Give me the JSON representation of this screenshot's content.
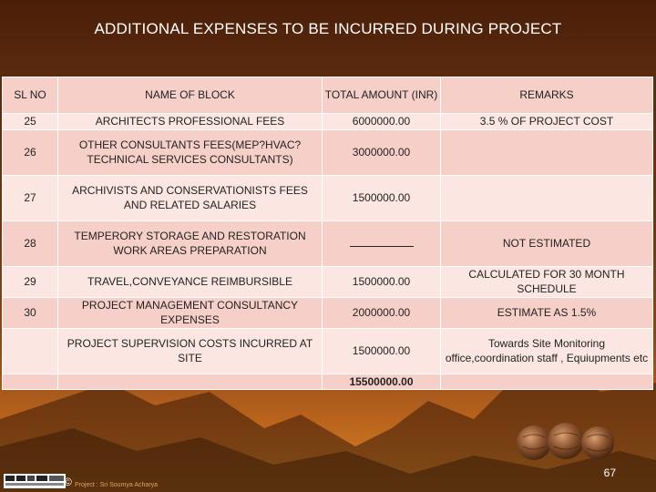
{
  "title": "ADDITIONAL EXPENSES  TO BE  INCURRED DURING PROJECT",
  "table": {
    "headers": {
      "sl": "SL NO",
      "block": "NAME OF BLOCK",
      "amount": "TOTAL AMOUNT (INR)",
      "remarks": "REMARKS"
    },
    "rows": [
      {
        "sl": "25",
        "block": "ARCHITECTS PROFESSIONAL FEES",
        "amount": "6000000.00",
        "remarks": "3.5 % OF PROJECT COST"
      },
      {
        "sl": "26",
        "block": "OTHER CONSULTANTS FEES(MEP?HVAC?TECHNICAL SERVICES CONSULTANTS)",
        "amount": "3000000.00",
        "remarks": ""
      },
      {
        "sl": "27",
        "block": "ARCHIVISTS AND CONSERVATIONISTS FEES AND RELATED SALARIES",
        "amount": "1500000.00",
        "remarks": ""
      },
      {
        "sl": "28",
        "block": "TEMPERORY STORAGE AND RESTORATION WORK AREAS PREPARATION",
        "amount": "",
        "remarks": "NOT ESTIMATED"
      },
      {
        "sl": "29",
        "block": "TRAVEL,CONVEYANCE REIMBURSIBLE",
        "amount": "1500000.00",
        "remarks": "CALCULATED FOR 30 MONTH SCHEDULE"
      },
      {
        "sl": "30",
        "block": "PROJECT MANAGEMENT CONSULTANCY  EXPENSES",
        "amount": "2000000.00",
        "remarks": "ESTIMATE AS 1.5%"
      },
      {
        "sl": "",
        "block": "PROJECT SUPERVISION COSTS INCURRED AT SITE",
        "amount": "1500000.00",
        "remarks": "Towards Site Monitoring office,coordination staff  , Equiupments etc"
      }
    ],
    "total": "15500000.00"
  },
  "footer": {
    "page_number": "67",
    "copyright": "©",
    "credit": "Project : Sri Soumya Acharya"
  }
}
